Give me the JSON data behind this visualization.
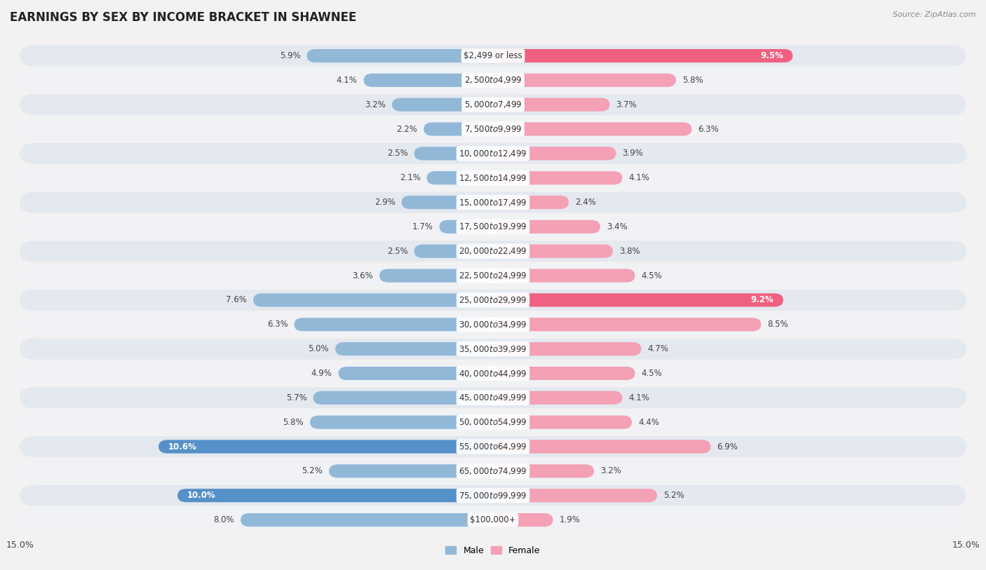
{
  "title": "EARNINGS BY SEX BY INCOME BRACKET IN SHAWNEE",
  "source": "Source: ZipAtlas.com",
  "categories": [
    "$2,499 or less",
    "$2,500 to $4,999",
    "$5,000 to $7,499",
    "$7,500 to $9,999",
    "$10,000 to $12,499",
    "$12,500 to $14,999",
    "$15,000 to $17,499",
    "$17,500 to $19,999",
    "$20,000 to $22,499",
    "$22,500 to $24,999",
    "$25,000 to $29,999",
    "$30,000 to $34,999",
    "$35,000 to $39,999",
    "$40,000 to $44,999",
    "$45,000 to $49,999",
    "$50,000 to $54,999",
    "$55,000 to $64,999",
    "$65,000 to $74,999",
    "$75,000 to $99,999",
    "$100,000+"
  ],
  "male_values": [
    5.9,
    4.1,
    3.2,
    2.2,
    2.5,
    2.1,
    2.9,
    1.7,
    2.5,
    3.6,
    7.6,
    6.3,
    5.0,
    4.9,
    5.7,
    5.8,
    10.6,
    5.2,
    10.0,
    8.0
  ],
  "female_values": [
    9.5,
    5.8,
    3.7,
    6.3,
    3.9,
    4.1,
    2.4,
    3.4,
    3.8,
    4.5,
    9.2,
    8.5,
    4.7,
    4.5,
    4.1,
    4.4,
    6.9,
    3.2,
    5.2,
    1.9
  ],
  "male_color": "#92b8d8",
  "female_color": "#f4a0b5",
  "male_highlight_color": "#5590c8",
  "female_highlight_color": "#f06080",
  "highlight_threshold": 9.0,
  "xlim": 15.0,
  "bar_height": 0.55,
  "background_color": "#f2f2f2",
  "row_color_odd": "#e4e8ef",
  "row_color_even": "#f0f2f5",
  "title_fontsize": 12,
  "label_fontsize": 8.5,
  "tick_fontsize": 9,
  "category_fontsize": 8.5,
  "white_label_threshold": 9.0
}
